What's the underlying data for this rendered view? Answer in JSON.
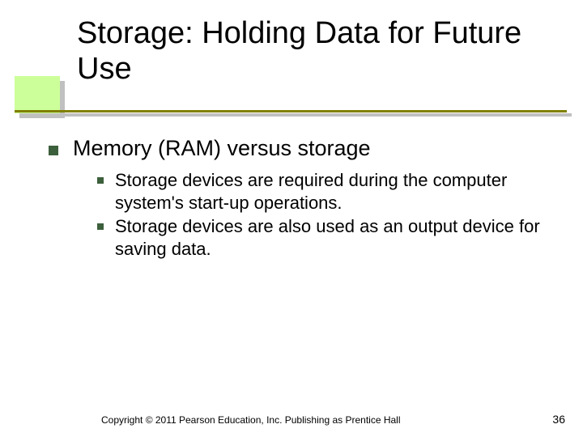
{
  "title": "Storage: Holding Data for Future Use",
  "colors": {
    "accent_box": "#ccff99",
    "shadow": "#c0c0c0",
    "underline": "#808000",
    "bullet": "#3c5f3c",
    "text": "#000000",
    "background": "#ffffff"
  },
  "content": {
    "level1": "Memory (RAM) versus storage",
    "level2": [
      "Storage devices are required during the computer system's start-up operations.",
      "Storage devices are also used as an output device for saving data."
    ]
  },
  "footer": "Copyright © 2011 Pearson Education, Inc. Publishing as Prentice Hall",
  "page_number": "36"
}
